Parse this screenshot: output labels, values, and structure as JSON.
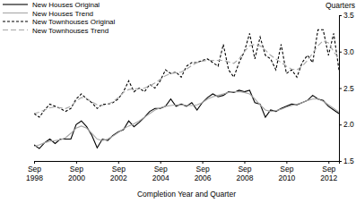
{
  "chart_data": {
    "type": "line",
    "x_label": "Completion Year and Quarter",
    "y_label": "Quarters",
    "categories": [
      "Sep 1998",
      null,
      null,
      null,
      null,
      null,
      null,
      null,
      "Sep 2000",
      null,
      null,
      null,
      null,
      null,
      null,
      null,
      "Sep 2002",
      null,
      null,
      null,
      null,
      null,
      null,
      null,
      "Sep 2004",
      null,
      null,
      null,
      null,
      null,
      null,
      null,
      "Sep 2006",
      null,
      null,
      null,
      null,
      null,
      null,
      null,
      "Sep 2008",
      null,
      null,
      null,
      null,
      null,
      null,
      null,
      "Sep 2010",
      null,
      null,
      null,
      null,
      null,
      null,
      null,
      "Sep 2012",
      null,
      null
    ],
    "ylim": [
      1.5,
      3.5
    ],
    "yticks": [
      1.5,
      {
        "value": 2,
        "label": "2.0"
      },
      2.5,
      {
        "value": 3,
        "label": "3.0"
      },
      3.5
    ],
    "grid": false,
    "legend": "top-left",
    "series": [
      {
        "name": "New Houses Original",
        "color": "#000000",
        "line_style": "solid",
        "values": [
          1.72,
          1.67,
          1.75,
          1.8,
          1.74,
          1.8,
          1.8,
          1.8,
          2.0,
          2.05,
          1.97,
          1.85,
          1.68,
          1.8,
          1.78,
          1.85,
          1.9,
          1.93,
          2.05,
          1.97,
          2.03,
          2.1,
          2.18,
          2.22,
          2.22,
          2.25,
          2.35,
          2.25,
          2.28,
          2.25,
          2.3,
          2.2,
          2.3,
          2.37,
          2.42,
          2.38,
          2.4,
          2.45,
          2.44,
          2.47,
          2.45,
          2.47,
          2.3,
          2.28,
          2.1,
          2.2,
          2.18,
          2.22,
          2.25,
          2.28,
          2.27,
          2.3,
          2.33,
          2.4,
          2.35,
          2.33,
          2.25,
          2.2,
          2.15
        ]
      },
      {
        "name": "New Houses Trend",
        "color": "#a6a6a6",
        "line_style": "solid",
        "values": [
          1.7,
          1.72,
          1.75,
          1.77,
          1.78,
          1.79,
          1.82,
          1.88,
          1.95,
          1.98,
          1.95,
          1.88,
          1.8,
          1.78,
          1.8,
          1.84,
          1.89,
          1.94,
          1.98,
          2.01,
          2.05,
          2.1,
          2.15,
          2.2,
          2.23,
          2.25,
          2.26,
          2.27,
          2.27,
          2.26,
          2.26,
          2.27,
          2.3,
          2.35,
          2.38,
          2.4,
          2.42,
          2.44,
          2.45,
          2.45,
          2.44,
          2.42,
          2.35,
          2.27,
          2.2,
          2.18,
          2.19,
          2.21,
          2.24,
          2.26,
          2.28,
          2.3,
          2.33,
          2.35,
          2.35,
          2.32,
          2.27,
          2.22,
          2.17
        ]
      },
      {
        "name": "New Townhouses Original",
        "color": "#000000",
        "line_style": "dashed",
        "values": [
          2.15,
          2.1,
          2.2,
          2.28,
          2.25,
          2.22,
          2.18,
          2.22,
          2.35,
          2.42,
          2.35,
          2.3,
          2.22,
          2.28,
          2.28,
          2.3,
          2.35,
          2.45,
          2.6,
          2.45,
          2.5,
          2.45,
          2.55,
          2.5,
          2.6,
          2.75,
          2.7,
          2.72,
          2.65,
          2.8,
          2.85,
          2.85,
          2.88,
          2.9,
          2.85,
          2.8,
          3.1,
          2.75,
          2.65,
          2.85,
          3.0,
          3.25,
          2.9,
          3.2,
          2.95,
          2.9,
          2.75,
          3.1,
          2.7,
          2.75,
          2.65,
          2.85,
          2.95,
          2.85,
          3.3,
          3.3,
          2.95,
          3.25,
          2.75
        ]
      },
      {
        "name": "New Townhouses Trend",
        "color": "#a6a6a6",
        "line_style": "long-dashed",
        "values": [
          2.15,
          2.17,
          2.2,
          2.23,
          2.24,
          2.23,
          2.22,
          2.25,
          2.32,
          2.37,
          2.36,
          2.31,
          2.27,
          2.26,
          2.28,
          2.31,
          2.37,
          2.44,
          2.48,
          2.49,
          2.49,
          2.5,
          2.53,
          2.57,
          2.62,
          2.67,
          2.7,
          2.71,
          2.72,
          2.76,
          2.81,
          2.85,
          2.87,
          2.88,
          2.88,
          2.88,
          2.88,
          2.86,
          2.84,
          2.9,
          3.0,
          3.08,
          3.1,
          3.08,
          3.02,
          2.95,
          2.9,
          2.85,
          2.8,
          2.76,
          2.75,
          2.8,
          2.88,
          2.98,
          3.08,
          3.15,
          3.12,
          3.0,
          2.9
        ]
      }
    ]
  }
}
